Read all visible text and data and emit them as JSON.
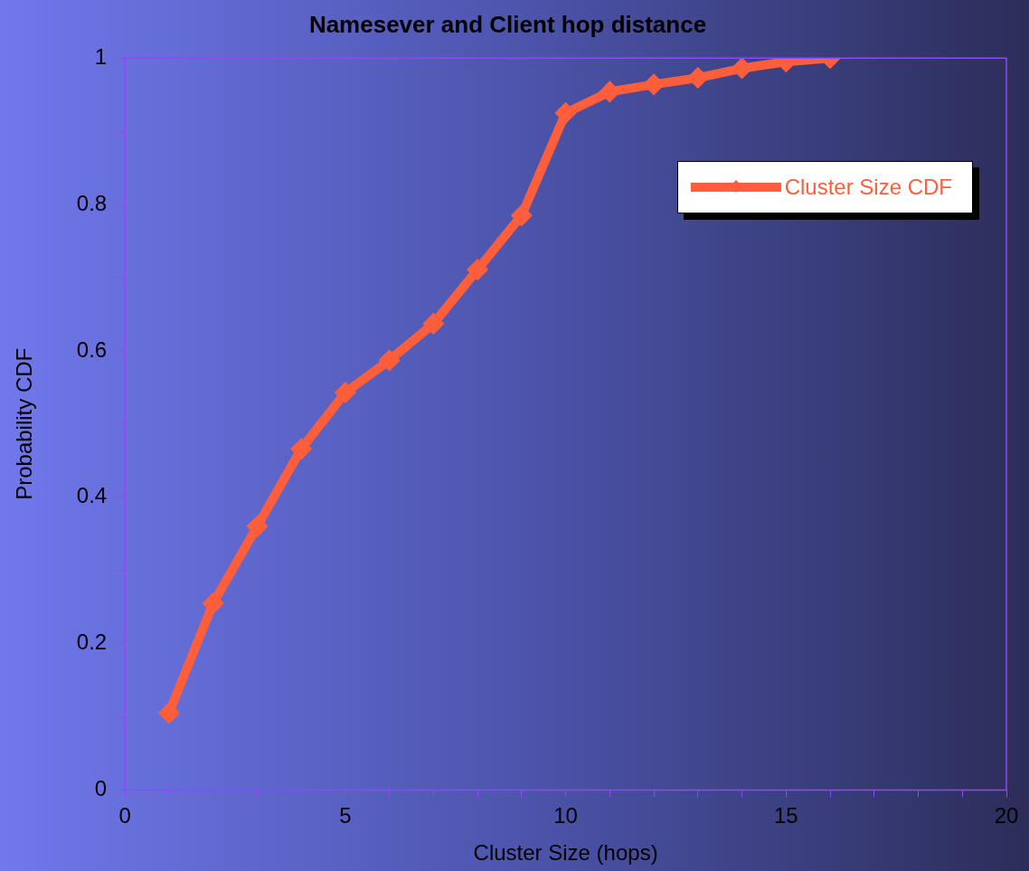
{
  "chart_data": {
    "type": "line",
    "title": "Namesever and Client hop distance",
    "xlabel": "Cluster Size (hops)",
    "ylabel": "Probability CDF",
    "x": [
      1,
      2,
      3,
      4,
      5,
      6,
      7,
      8,
      9,
      10,
      11,
      12,
      13,
      14,
      15,
      16
    ],
    "series": [
      {
        "name": "Cluster Size CDF",
        "color": "#ff5e3a",
        "values": [
          0.105,
          0.255,
          0.36,
          0.466,
          0.543,
          0.587,
          0.637,
          0.711,
          0.785,
          0.925,
          0.954,
          0.964,
          0.973,
          0.986,
          0.995,
          1.0
        ]
      }
    ],
    "xlim": [
      0,
      20
    ],
    "xticks": [
      0,
      {
        "value": 1,
        "label": null
      },
      {
        "value": 2,
        "label": null
      },
      {
        "value": 3,
        "label": null
      },
      {
        "value": 4,
        "label": null
      },
      5,
      {
        "value": 6,
        "label": null
      },
      {
        "value": 7,
        "label": null
      },
      {
        "value": 8,
        "label": null
      },
      {
        "value": 9,
        "label": null
      },
      10,
      {
        "value": 11,
        "label": null
      },
      {
        "value": 12,
        "label": null
      },
      {
        "value": 13,
        "label": null
      },
      {
        "value": 14,
        "label": null
      },
      15,
      {
        "value": 16,
        "label": null
      },
      {
        "value": 17,
        "label": null
      },
      {
        "value": 18,
        "label": null
      },
      {
        "value": 19,
        "label": null
      },
      20
    ],
    "ylim": [
      0,
      1
    ],
    "yticks": [
      0,
      {
        "value": 0.1,
        "label": null
      },
      0.2,
      {
        "value": 0.3,
        "label": null
      },
      0.4,
      {
        "value": 0.5,
        "label": null
      },
      0.6,
      {
        "value": 0.7,
        "label": null
      },
      0.8,
      {
        "value": 0.9,
        "label": null
      },
      1
    ],
    "grid": false,
    "legend": "top right",
    "marker": "diamond",
    "line_style": "solid"
  }
}
